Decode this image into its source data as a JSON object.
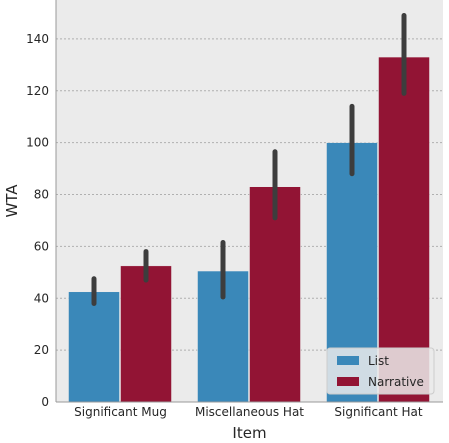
{
  "chart_data": {
    "type": "bar",
    "xlabel": "Item",
    "ylabel": "WTA",
    "ylim": [
      0,
      155
    ],
    "yticks": [
      0,
      20,
      40,
      60,
      80,
      100,
      120,
      140
    ],
    "grid": true,
    "legend_placement": "bottom-right",
    "categories": [
      "Significant Mug",
      "Miscellaneous Hat",
      "Significant Hat"
    ],
    "series": [
      {
        "name": "List",
        "color": "#3a88b9",
        "values": [
          42.5,
          50.5,
          100
        ],
        "error_low": [
          38,
          40.5,
          88
        ],
        "error_high": [
          47.5,
          61.5,
          114
        ]
      },
      {
        "name": "Narrative",
        "color": "#921434",
        "values": [
          52.5,
          83,
          133
        ],
        "error_low": [
          47,
          71,
          119
        ],
        "error_high": [
          58,
          96.5,
          149
        ]
      }
    ],
    "colors": {
      "background": "#ebebeb",
      "grid": "#b0b0b0",
      "error_bar": "#3d3d3d"
    }
  }
}
